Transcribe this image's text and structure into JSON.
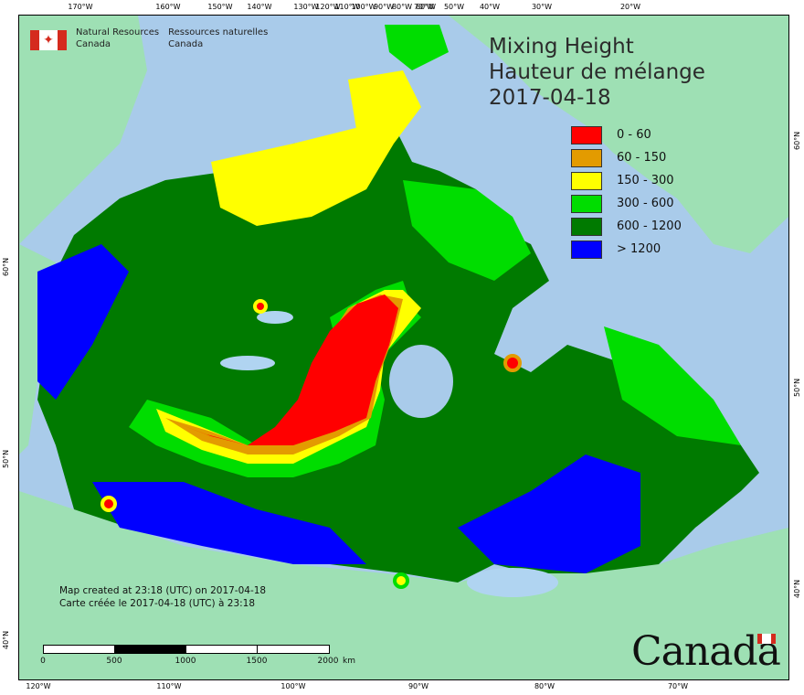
{
  "graticule_top": [
    "170°W",
    "160°W",
    "150°W",
    "140°W",
    "130°W",
    "120°W",
    "110°W",
    "100°W",
    "90°W",
    "80°W",
    "70°W",
    "60°W",
    "50°W",
    "40°W",
    "30°W",
    "20°W"
  ],
  "graticule_bottom": [
    "120°W",
    "110°W",
    "100°W",
    "90°W",
    "80°W",
    "70°W"
  ],
  "graticule_left": [
    "60°N",
    "50°N",
    "40°N"
  ],
  "graticule_right": [
    "60°N",
    "50°N",
    "40°N"
  ],
  "agency": {
    "en_line1": "Natural Resources",
    "en_line2": "Canada",
    "fr_line1": "Ressources naturelles",
    "fr_line2": "Canada"
  },
  "title": {
    "line1": "Mixing Height",
    "line2": "Hauteur de mélange",
    "date": "2017-04-18"
  },
  "legend": [
    {
      "label": "0 - 60",
      "color": "#ff0000"
    },
    {
      "label": "60 - 150",
      "color": "#e39b00"
    },
    {
      "label": "150 - 300",
      "color": "#ffff00"
    },
    {
      "label": "300 - 600",
      "color": "#00dd00"
    },
    {
      "label": "600 - 1200",
      "color": "#007a00"
    },
    {
      "label": "> 1200",
      "color": "#0000ff"
    }
  ],
  "credit": {
    "en": "Map created at 23:18 (UTC) on 2017-04-18",
    "fr": "Carte créée le 2017-04-18 (UTC) à 23:18"
  },
  "scale": {
    "labels": [
      "0",
      "500",
      "1000",
      "1500",
      "2000"
    ],
    "unit": "km"
  },
  "wordmark": "Canada",
  "colors": {
    "ocean": "#a9cbea",
    "land_foreign": "#9ee0b4",
    "lakes": "#b0d4f1"
  }
}
